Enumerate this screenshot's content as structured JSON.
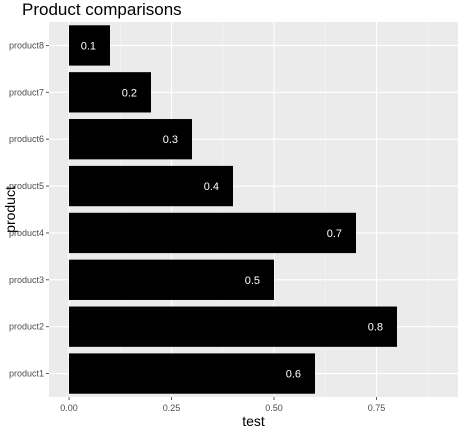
{
  "chart_data": {
    "type": "bar",
    "orientation": "horizontal",
    "title": "Product comparisons",
    "xlabel": "test",
    "ylabel": "product",
    "categories": [
      "product1",
      "product2",
      "product3",
      "product4",
      "product5",
      "product6",
      "product7",
      "product8"
    ],
    "values": [
      0.6,
      0.8,
      0.5,
      0.7,
      0.4,
      0.3,
      0.2,
      0.1
    ],
    "data_labels": [
      "0.6",
      "0.8",
      "0.5",
      "0.7",
      "0.4",
      "0.3",
      "0.2",
      "0.1"
    ],
    "xlim": [
      0,
      0.9
    ],
    "xticks": [
      0,
      0.25,
      0.5,
      0.75
    ],
    "xtick_labels": [
      "0.00",
      "0.25",
      "0.50",
      "0.75"
    ],
    "grid": true,
    "legend": "none",
    "colors": {
      "bar": "#000000",
      "panel": "#ebebeb",
      "grid_major": "#ffffff",
      "grid_minor": "#f5f5f5",
      "data_label": "#ffffff",
      "tick_text": "#4d4d4d"
    }
  }
}
